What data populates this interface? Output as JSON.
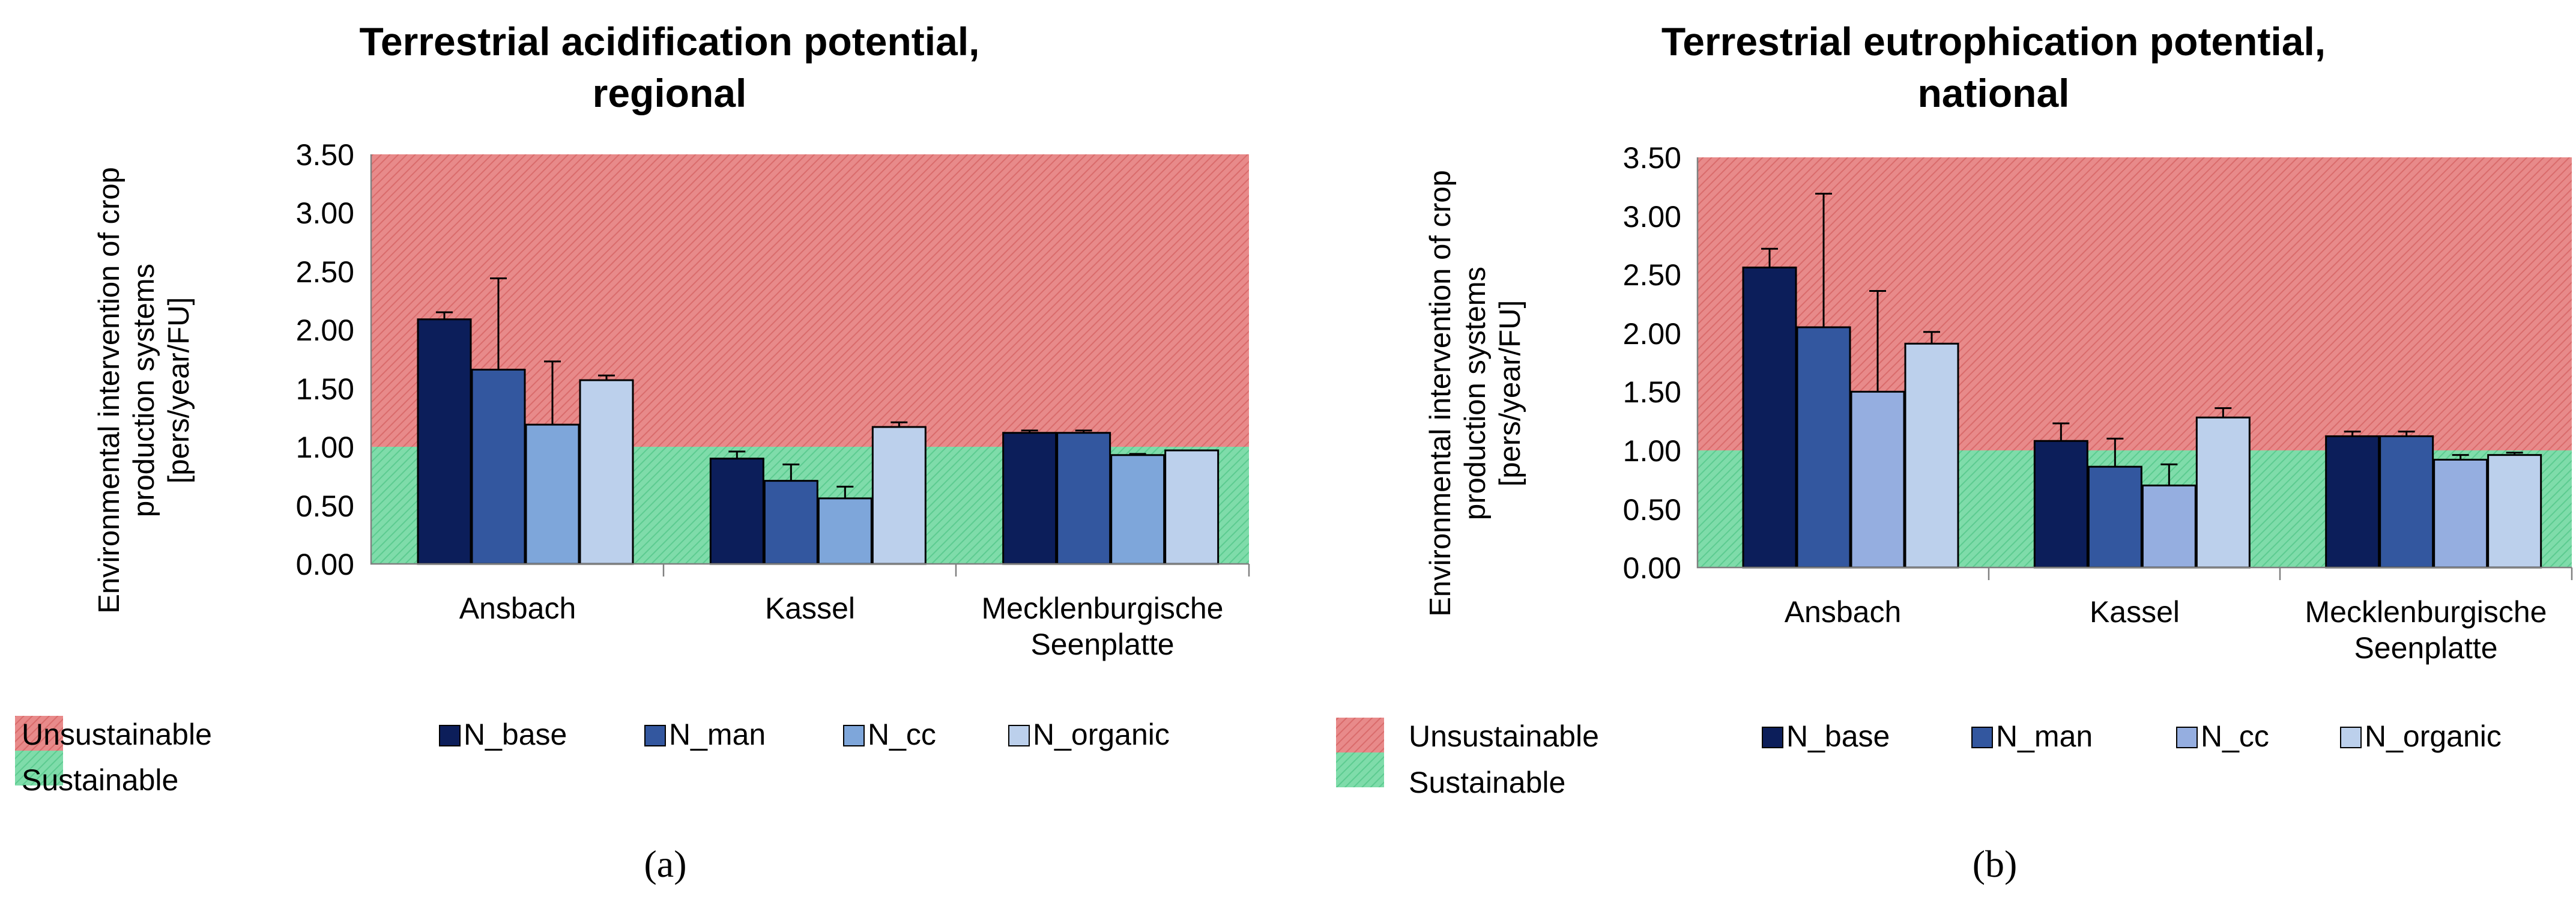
{
  "colors": {
    "unsustainable": "#e88a8a",
    "unsustainable_hatch": "#d96b6b",
    "sustainable": "#7fdcaa",
    "sustainable_hatch": "#5ccb90",
    "N_base": "#0c1e5a",
    "N_man": "#33579f",
    "N_cc_a": "#7ea6da",
    "N_cc_b": "#95aee0",
    "N_organic": "#bcd0ec"
  },
  "zone_legend": {
    "unsustainable": "Unsustainable",
    "sustainable": "Sustainable"
  },
  "chart_data": [
    {
      "type": "bar",
      "title_line1": "Terrestrial acidification potential,",
      "title_line2": "regional",
      "ylabel_line1": "Environmental  intervention  of crop",
      "ylabel_line2": "production systems",
      "ylabel_line3": "[pers/year/FU]",
      "ylim": [
        0,
        3.5
      ],
      "yticks": [
        "0.00",
        "0.50",
        "1.00",
        "1.50",
        "2.00",
        "2.50",
        "3.00",
        "3.50"
      ],
      "threshold": 1.0,
      "categories": [
        "Ansbach",
        "Kassel",
        "Mecklenburgische Seenplatte"
      ],
      "category_lines": [
        [
          "Ansbach"
        ],
        [
          "Kassel"
        ],
        [
          "Mecklenburgische",
          "Seenplatte"
        ]
      ],
      "series": [
        {
          "name": "N_base",
          "values": [
            2.09,
            0.9,
            1.12
          ],
          "errors": [
            0.06,
            0.06,
            0.02
          ]
        },
        {
          "name": "N_man",
          "values": [
            1.66,
            0.71,
            1.12
          ],
          "errors": [
            0.78,
            0.14,
            0.02
          ]
        },
        {
          "name": "N_cc",
          "values": [
            1.19,
            0.56,
            0.93
          ],
          "errors": [
            0.54,
            0.1,
            0.01
          ]
        },
        {
          "name": "N_organic",
          "values": [
            1.57,
            1.17,
            0.97
          ],
          "errors": [
            0.04,
            0.04,
            0.0
          ]
        }
      ],
      "subfigure_label": "(a)"
    },
    {
      "type": "bar",
      "title_line1": "Terrestrial eutrophication potential,",
      "title_line2": "national",
      "ylabel_line1": "Environmental  intervention  of crop",
      "ylabel_line2": "production systems",
      "ylabel_line3": "[pers/year/FU]",
      "ylim": [
        0,
        3.5
      ],
      "yticks": [
        "0.00",
        "0.50",
        "1.00",
        "1.50",
        "2.00",
        "2.50",
        "3.00",
        "3.50"
      ],
      "threshold": 1.0,
      "categories": [
        "Ansbach",
        "Kassel",
        "Mecklenburgische Seenplatte"
      ],
      "category_lines": [
        [
          "Ansbach"
        ],
        [
          "Kassel"
        ],
        [
          "Mecklenburgische",
          "Seenplatte"
        ]
      ],
      "series": [
        {
          "name": "N_base",
          "values": [
            2.56,
            1.08,
            1.12
          ],
          "errors": [
            0.16,
            0.15,
            0.04
          ]
        },
        {
          "name": "N_man",
          "values": [
            2.05,
            0.86,
            1.12
          ],
          "errors": [
            1.14,
            0.24,
            0.04
          ]
        },
        {
          "name": "N_cc",
          "values": [
            1.5,
            0.7,
            0.92
          ],
          "errors": [
            0.86,
            0.18,
            0.04
          ]
        },
        {
          "name": "N_organic",
          "values": [
            1.91,
            1.28,
            0.96
          ],
          "errors": [
            0.1,
            0.08,
            0.02
          ]
        }
      ],
      "subfigure_label": "(b)"
    }
  ]
}
